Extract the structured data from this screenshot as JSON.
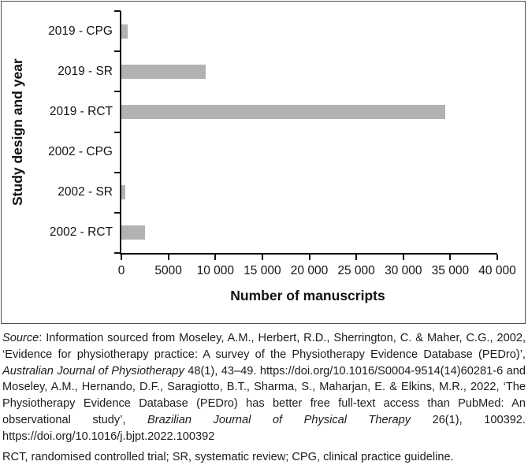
{
  "chart_data": {
    "type": "bar",
    "orientation": "horizontal",
    "categories": [
      "2019 - CPG",
      "2019 - SR",
      "2019 - RCT",
      "2002 - CPG",
      "2002 - SR",
      "2002 - RCT"
    ],
    "values": [
      700,
      9000,
      34500,
      0,
      400,
      2500
    ],
    "title": "",
    "xlabel": "Number of manuscripts",
    "ylabel": "Study design and year",
    "xlim": [
      0,
      40000
    ],
    "x_tick_values": [
      0,
      5000,
      10000,
      15000,
      20000,
      25000,
      30000,
      35000,
      40000
    ],
    "x_tick_labels": [
      "0",
      "5000",
      "10 000",
      "15 000",
      "20 000",
      "25 000",
      "30 000",
      "35 000",
      "40 000"
    ],
    "grid": false,
    "legend": false,
    "bar_color": "#b2b2b2",
    "axis_color": "#111111",
    "frame_border_color": "#4f4f4f"
  },
  "caption": {
    "segments": [
      {
        "text": "Source",
        "italic": true
      },
      {
        "text": ": Information sourced from Moseley, A.M., Herbert, R.D., Sherrington, C. & Maher, C.G., 2002, ‘Evidence for physiotherapy practice: A survey of the Physiotherapy Evidence Database (PEDro)’, ",
        "italic": false
      },
      {
        "text": "Australian Journal of Physiotherapy",
        "italic": true
      },
      {
        "text": " 48(1), 43–49. https://doi.org/10.1016/S0004-9514(14)60281-6 and Moseley, A.M., Hernando, D.F., Saragiotto, B.T., Sharma, S., Maharjan, E. & Elkins, M.R., 2022, ‘The Physiotherapy Evidence Database (PEDro) has better free full-text access than PubMed: An observational study’, ",
        "italic": false
      },
      {
        "text": "Brazilian Journal of Physical Therapy",
        "italic": true
      },
      {
        "text": " 26(1), 100392. https://doi.org/10.1016/j.bjpt.2022.100392",
        "italic": false
      }
    ],
    "abbreviations": "RCT, randomised controlled trial; SR, systematic review; CPG, clinical practice guideline."
  }
}
